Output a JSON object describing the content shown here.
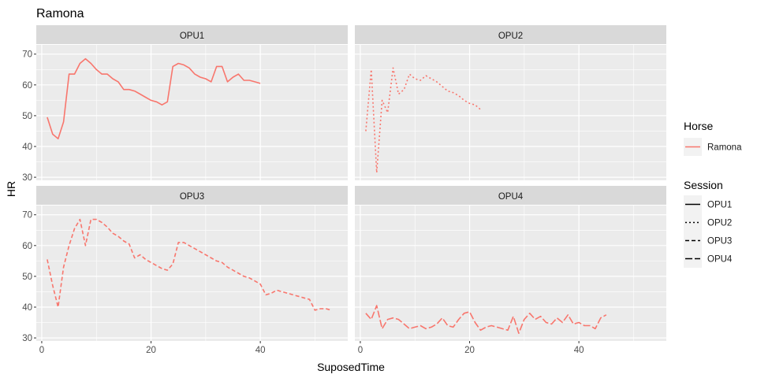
{
  "chart_data": {
    "type": "line",
    "title": "Ramona",
    "xlabel": "SuposedTime",
    "ylabel": "HR",
    "xlim": [
      -1,
      56
    ],
    "ylim": [
      29,
      73
    ],
    "x_ticks": [
      0,
      20,
      40
    ],
    "y_ticks": [
      30,
      40,
      50,
      60,
      70
    ],
    "grid": true,
    "series_color": "#F8766D",
    "panels": [
      {
        "label": "OPU1",
        "linetype": "solid",
        "x": [
          1,
          2,
          3,
          4,
          5,
          6,
          7,
          8,
          9,
          10,
          11,
          12,
          13,
          14,
          15,
          16,
          17,
          18,
          19,
          20,
          21,
          22,
          23,
          24,
          25,
          26,
          27,
          28,
          29,
          30,
          31,
          32,
          33,
          34,
          35,
          36,
          37,
          38,
          39,
          40
        ],
        "y": [
          49.5,
          44,
          42.5,
          48,
          63.5,
          63.5,
          67,
          68.5,
          67,
          65,
          63.5,
          63.5,
          62,
          61,
          58.5,
          58.5,
          58,
          57,
          56,
          55,
          54.5,
          53.5,
          54.5,
          66,
          67,
          66.5,
          65.5,
          63.5,
          62.5,
          62,
          61,
          66,
          66,
          61,
          62.5,
          63.5,
          61.5,
          61.5,
          61,
          60.5
        ]
      },
      {
        "label": "OPU2",
        "linetype": "dotted",
        "x": [
          1,
          2,
          3,
          4,
          5,
          6,
          7,
          8,
          9,
          10,
          11,
          12,
          13,
          14,
          15,
          16,
          17,
          18,
          19,
          20,
          21,
          22
        ],
        "y": [
          45,
          65,
          31.5,
          55,
          51,
          65.5,
          57,
          58.5,
          63.5,
          62,
          61.5,
          63,
          62,
          61,
          59.5,
          58,
          57.5,
          56.5,
          55,
          54,
          53.5,
          52
        ]
      },
      {
        "label": "OPU3",
        "linetype": "dashed",
        "x": [
          1,
          2,
          3,
          4,
          5,
          6,
          7,
          8,
          9,
          10,
          11,
          12,
          13,
          14,
          15,
          16,
          17,
          18,
          19,
          20,
          21,
          22,
          23,
          24,
          25,
          26,
          27,
          28,
          29,
          30,
          31,
          32,
          33,
          34,
          35,
          36,
          37,
          38,
          39,
          40,
          41,
          42,
          43,
          44,
          45,
          46,
          47,
          48,
          49,
          50,
          51,
          52,
          53
        ],
        "y": [
          55.5,
          47,
          40,
          53,
          60,
          65.5,
          68.5,
          60,
          68.5,
          68.5,
          67.5,
          66,
          64,
          63,
          61.5,
          60.5,
          56,
          57,
          55.5,
          54.5,
          53.5,
          52.5,
          52,
          54,
          61,
          61,
          60,
          59,
          58,
          57,
          56,
          55,
          54.5,
          53,
          52,
          51,
          50,
          49.5,
          48.5,
          47.5,
          44,
          44.5,
          45.5,
          45,
          44.5,
          44,
          43.5,
          43,
          42.5,
          39,
          39.5,
          39.5,
          39
        ]
      },
      {
        "label": "OPU4",
        "linetype": "longdash",
        "x": [
          1,
          2,
          3,
          4,
          5,
          6,
          7,
          8,
          9,
          10,
          11,
          12,
          13,
          14,
          15,
          16,
          17,
          18,
          19,
          20,
          21,
          22,
          23,
          24,
          25,
          26,
          27,
          28,
          29,
          30,
          31,
          32,
          33,
          34,
          35,
          36,
          37,
          38,
          39,
          40,
          41,
          42,
          43,
          44,
          45
        ],
        "y": [
          38,
          36,
          40.5,
          33,
          36,
          36.5,
          36,
          34.5,
          33,
          33.5,
          34,
          33,
          33.5,
          34.5,
          36.5,
          34,
          33.5,
          36,
          38,
          38.5,
          35,
          32.5,
          33.5,
          34,
          33.5,
          33,
          32.5,
          37,
          31.5,
          36,
          38,
          36,
          37,
          35,
          34.5,
          36.5,
          35,
          37.5,
          34.5,
          35,
          34,
          34,
          33,
          36.5,
          37.5
        ]
      }
    ],
    "legend": {
      "placement": "right",
      "horse_title": "Horse",
      "horse_items": [
        "Ramona"
      ],
      "session_title": "Session",
      "session_items": [
        "OPU1",
        "OPU2",
        "OPU3",
        "OPU4"
      ]
    }
  }
}
